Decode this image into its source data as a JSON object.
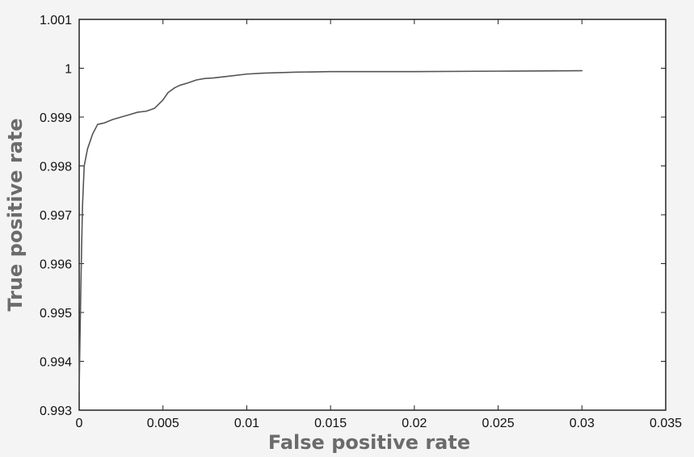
{
  "chart_data": {
    "type": "line",
    "title": "",
    "xlabel": "False positive rate",
    "ylabel": "True positive rate",
    "xlim": [
      0,
      0.035
    ],
    "ylim": [
      0.993,
      1.001
    ],
    "x_ticks": [
      0,
      0.005,
      0.01,
      0.015,
      0.02,
      0.025,
      0.03,
      0.035
    ],
    "x_tick_labels": [
      "0",
      "0.005",
      "0.01",
      "0.015",
      "0.02",
      "0.025",
      "0.03",
      "0.035"
    ],
    "y_ticks": [
      0.993,
      0.994,
      0.995,
      0.996,
      0.997,
      0.998,
      0.999,
      1,
      1.001
    ],
    "y_tick_labels": [
      "0.993",
      "0.994",
      "0.995",
      "0.996",
      "0.997",
      "0.998",
      "0.999",
      "1",
      "1.001"
    ],
    "grid": false,
    "legend": "none",
    "series": [
      {
        "color": "#555555",
        "x": [
          0,
          5e-05,
          0.0001,
          0.00015,
          0.0002,
          0.0003,
          0.0005,
          0.0008,
          0.0011,
          0.0015,
          0.002,
          0.0025,
          0.003,
          0.0035,
          0.004,
          0.0045,
          0.005,
          0.0053,
          0.0057,
          0.006,
          0.0065,
          0.007,
          0.0075,
          0.008,
          0.009,
          0.01,
          0.011,
          0.012,
          0.013,
          0.015,
          0.02,
          0.025,
          0.03
        ],
        "y": [
          0.9934,
          0.9945,
          0.9955,
          0.9964,
          0.9972,
          0.998,
          0.99835,
          0.99865,
          0.99885,
          0.99888,
          0.99895,
          0.999,
          0.99905,
          0.9991,
          0.99912,
          0.99918,
          0.99935,
          0.9995,
          0.9996,
          0.99965,
          0.9997,
          0.99976,
          0.99979,
          0.9998,
          0.99984,
          0.99988,
          0.9999,
          0.99991,
          0.99992,
          0.99993,
          0.99993,
          0.99994,
          0.99995
        ]
      }
    ]
  }
}
